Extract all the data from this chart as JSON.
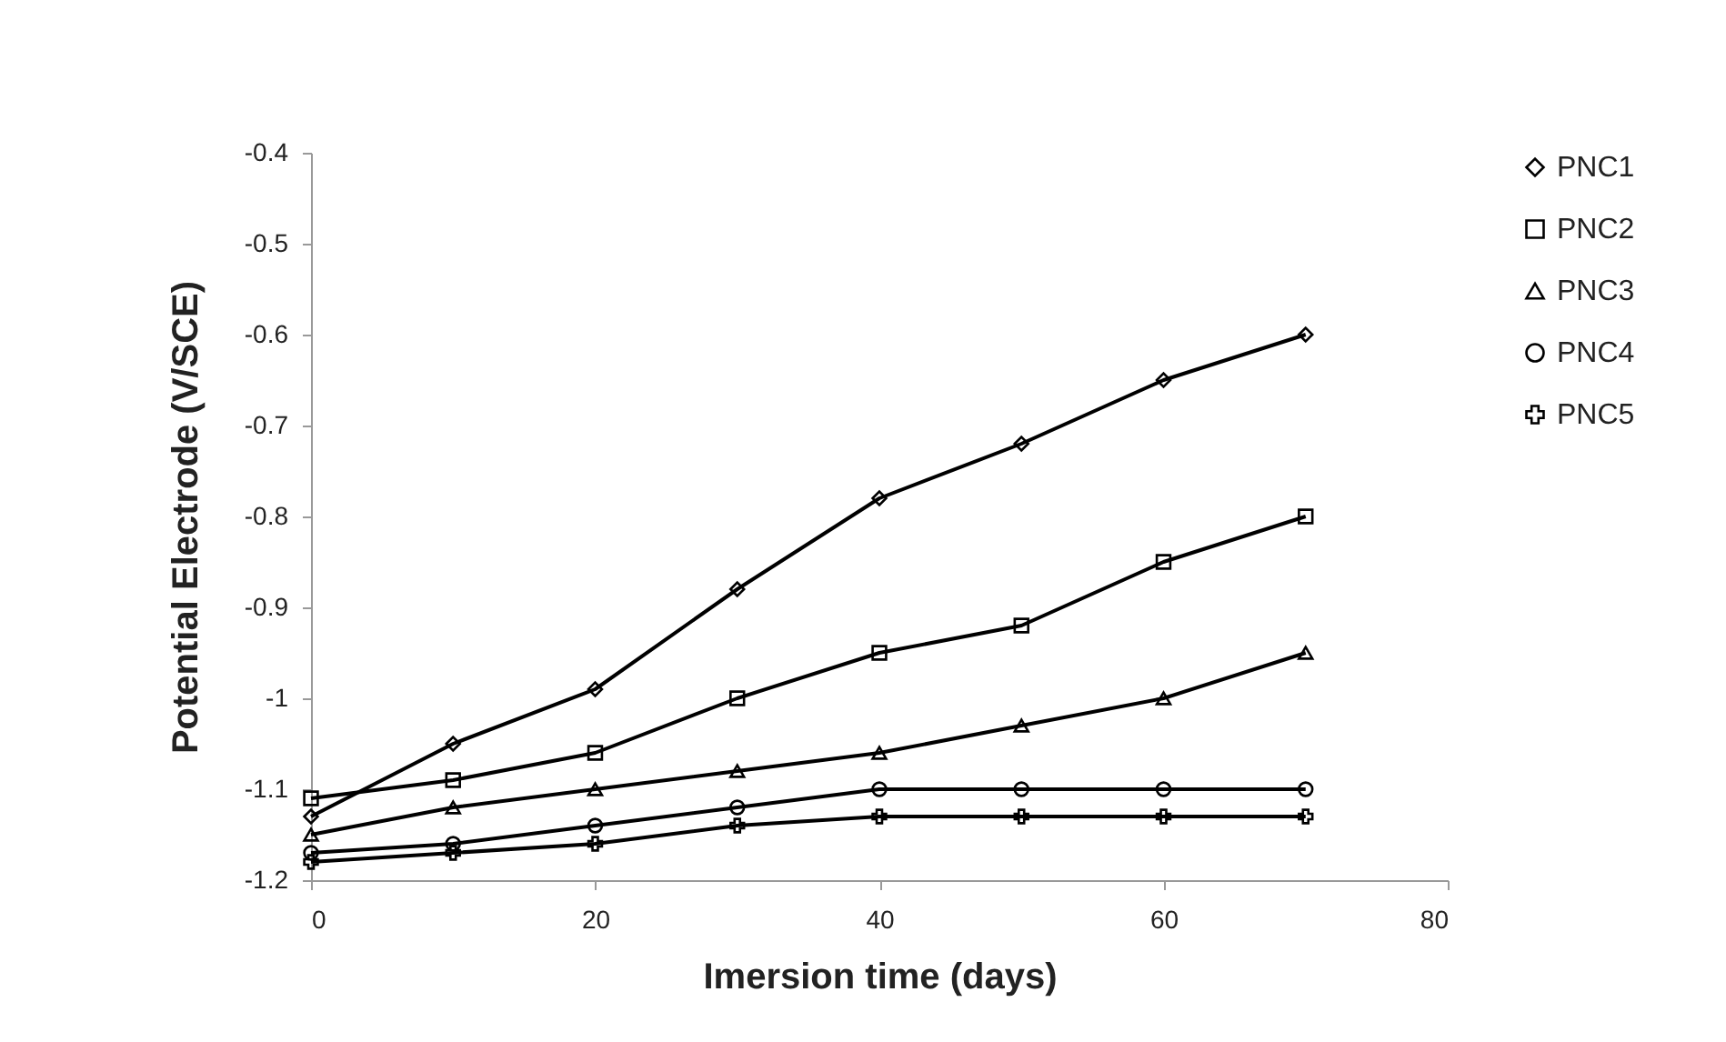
{
  "chart_data": {
    "type": "line",
    "xlabel": "Imersion time (days)",
    "ylabel": "Potential  Electrode (V/SCE)",
    "x": [
      0,
      10,
      20,
      30,
      40,
      50,
      60,
      70
    ],
    "series": [
      {
        "name": "PNC1",
        "color": "#000000",
        "marker": "diamond",
        "values": [
          -1.13,
          -1.05,
          -0.99,
          -0.88,
          -0.78,
          -0.72,
          -0.65,
          -0.6
        ]
      },
      {
        "name": "PNC2",
        "color": "#000000",
        "marker": "square",
        "values": [
          -1.11,
          -1.09,
          -1.06,
          -1.0,
          -0.95,
          -0.92,
          -0.85,
          -0.8
        ]
      },
      {
        "name": "PNC3",
        "color": "#000000",
        "marker": "triangle",
        "values": [
          -1.15,
          -1.12,
          -1.1,
          -1.08,
          -1.06,
          -1.03,
          -1.0,
          -0.95
        ]
      },
      {
        "name": "PNC4",
        "color": "#000000",
        "marker": "circle",
        "values": [
          -1.17,
          -1.16,
          -1.14,
          -1.12,
          -1.1,
          -1.1,
          -1.1,
          -1.1
        ]
      },
      {
        "name": "PNC5",
        "color": "#000000",
        "marker": "cross",
        "values": [
          -1.18,
          -1.17,
          -1.16,
          -1.14,
          -1.13,
          -1.13,
          -1.13,
          -1.13
        ]
      }
    ],
    "xlim": [
      0,
      80
    ],
    "xticks": [
      0,
      20,
      40,
      60,
      80
    ],
    "ylim": [
      -1.2,
      -0.4
    ],
    "yticks": [
      -1.2,
      -1.1,
      -1,
      -0.9,
      -0.8,
      -0.7,
      -0.6,
      -0.5,
      -0.4
    ],
    "legend": "right",
    "grid": false
  }
}
